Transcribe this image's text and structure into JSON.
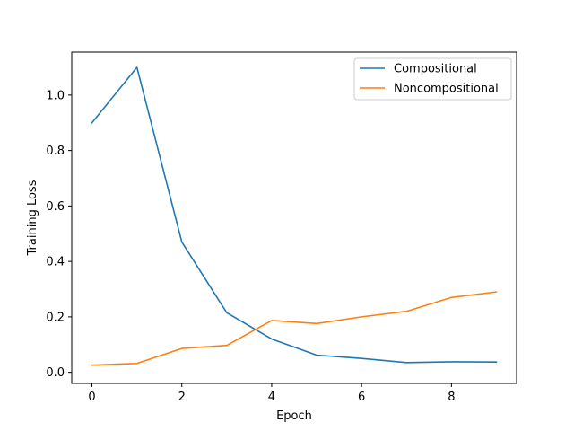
{
  "chart_data": {
    "type": "line",
    "title": "",
    "xlabel": "Epoch",
    "ylabel": "Training Loss",
    "xlim": [
      -0.45,
      9.45
    ],
    "ylim": [
      -0.04,
      1.155
    ],
    "x_ticks": [
      0,
      2,
      4,
      6,
      8
    ],
    "x_tick_labels": [
      "0",
      "2",
      "4",
      "6",
      "8"
    ],
    "y_ticks": [
      0.0,
      0.2,
      0.4,
      0.6,
      0.8,
      1.0
    ],
    "y_tick_labels": [
      "0.0",
      "0.2",
      "0.4",
      "0.6",
      "0.8",
      "1.0"
    ],
    "grid": false,
    "legend_position": "top-right",
    "x": [
      0,
      1,
      2,
      3,
      4,
      5,
      6,
      7,
      8,
      9
    ],
    "series": [
      {
        "name": "Compositional",
        "color": "#1f77b4",
        "values": [
          0.9,
          1.1,
          0.47,
          0.215,
          0.12,
          0.062,
          0.05,
          0.035,
          0.038,
          0.037
        ]
      },
      {
        "name": "Noncompositional",
        "color": "#ff7f0e",
        "values": [
          0.026,
          0.032,
          0.086,
          0.097,
          0.187,
          0.176,
          0.2,
          0.22,
          0.27,
          0.29
        ]
      }
    ]
  }
}
